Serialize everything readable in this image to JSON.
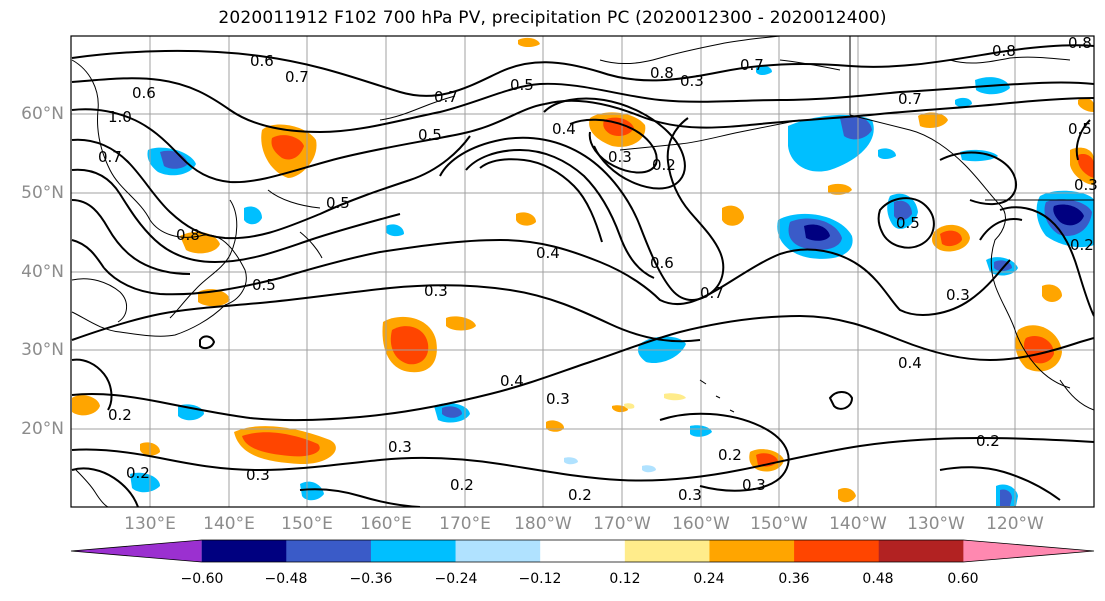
{
  "title": "2020011912 F102 700 hPa PV, precipitation PC (2020012300 - 2020012400)",
  "lat_labels": [
    "60°N",
    "50°N",
    "40°N",
    "30°N",
    "20°N"
  ],
  "lon_labels": [
    "130°E",
    "140°E",
    "150°E",
    "160°E",
    "170°E",
    "180°W",
    "170°W",
    "160°W",
    "150°W",
    "140°W",
    "130°W",
    "120°W"
  ],
  "colorbar": {
    "ticks": [
      "−0.60",
      "−0.48",
      "−0.36",
      "−0.24",
      "−0.12",
      "0.12",
      "0.24",
      "0.36",
      "0.48",
      "0.60"
    ],
    "colors": [
      "#9b30d0",
      "#000080",
      "#3a5bc8",
      "#00bfff",
      "#b0e2ff",
      "#ffffff",
      "#ffec8b",
      "#ffa500",
      "#ff4500",
      "#b22222",
      "#ff88b0"
    ]
  },
  "contour_labels": [
    "0.6",
    "0.7",
    "0.6",
    "1.0",
    "0.7",
    "0.8",
    "0.5",
    "0.7",
    "0.5",
    "0.5",
    "0.4",
    "0.3",
    "0.2",
    "0.8",
    "0.3",
    "0.7",
    "0.8",
    "0.7",
    "0.8",
    "0.5",
    "0.5",
    "0.3",
    "0.4",
    "0.6",
    "0.7",
    "0.5",
    "0.3",
    "0.3",
    "0.4",
    "0.3",
    "0.4",
    "0.2",
    "0.2",
    "0.2",
    "0.3",
    "0.3",
    "0.2",
    "0.2",
    "0.3",
    "0.2",
    "0.3",
    "0.2"
  ]
}
